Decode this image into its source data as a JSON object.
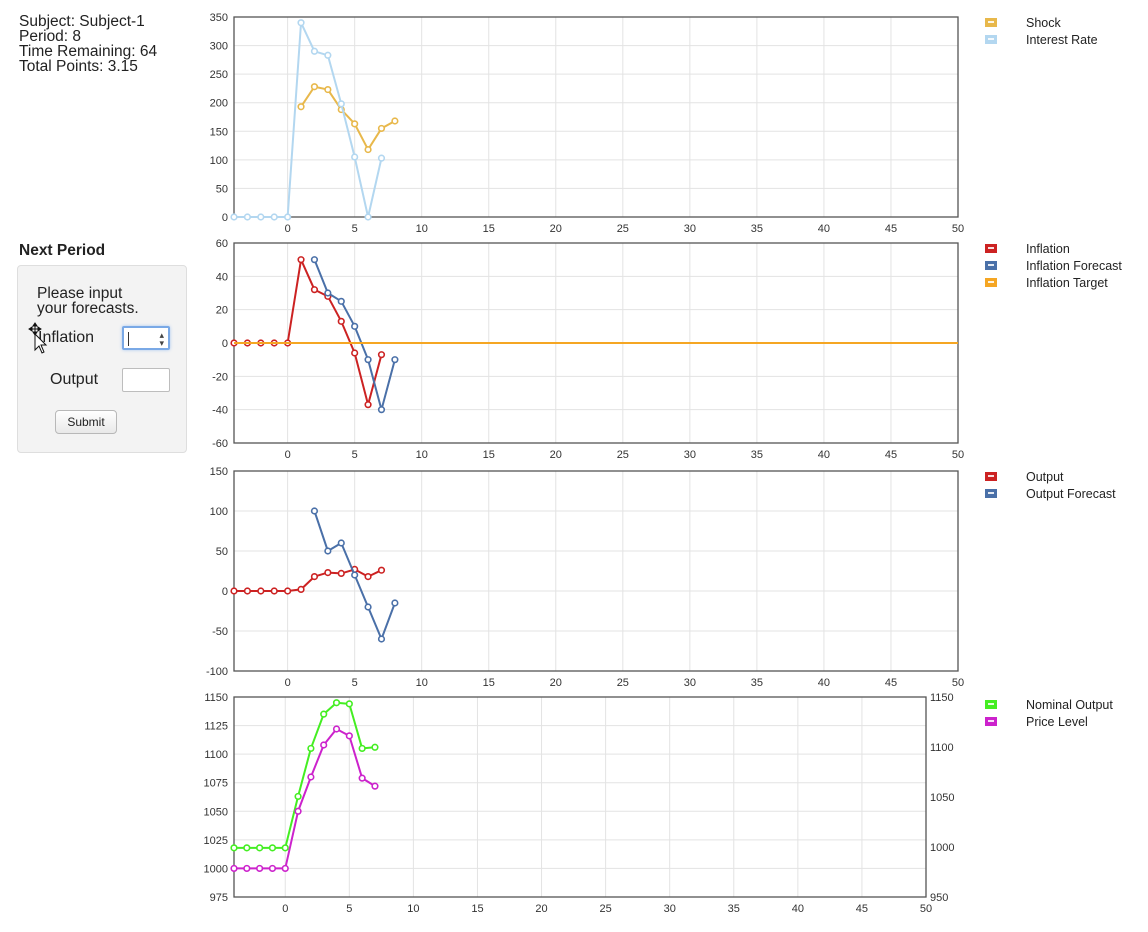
{
  "info": {
    "subject": "Subject: Subject-1",
    "period": "Period: 8",
    "time_remaining": "Time Remaining: 64",
    "total_points": "Total Points: 3.15"
  },
  "form": {
    "title": "Next Period",
    "prompt_line1": "Please input",
    "prompt_line2": "your forecasts.",
    "inflation_label": "Inflation",
    "inflation_value": "",
    "output_label": "Output",
    "output_value": "",
    "submit_label": "Submit"
  },
  "chart_data": [
    {
      "type": "line",
      "x_ticks": [
        0,
        5,
        10,
        15,
        20,
        25,
        30,
        35,
        40,
        45,
        50
      ],
      "xlim": [
        -4,
        50
      ],
      "ylim": [
        0,
        350
      ],
      "y_ticks": [
        0,
        50,
        100,
        150,
        200,
        250,
        300,
        350
      ],
      "grid": true,
      "legend_position": "right",
      "series": [
        {
          "name": "Shock",
          "color": "#e8b84b",
          "x": [
            1,
            2,
            3,
            4,
            5,
            6,
            7,
            8
          ],
          "values": [
            193,
            228,
            223,
            188,
            163,
            118,
            155,
            168
          ]
        },
        {
          "name": "Interest Rate",
          "color": "#b3d7f0",
          "x": [
            -4,
            -3,
            -2,
            -1,
            0,
            1,
            2,
            3,
            4,
            5,
            6,
            7
          ],
          "values": [
            0,
            0,
            0,
            0,
            0,
            340,
            290,
            283,
            198,
            105,
            0,
            103
          ]
        }
      ]
    },
    {
      "type": "line",
      "x_ticks": [
        0,
        5,
        10,
        15,
        20,
        25,
        30,
        35,
        40,
        45,
        50
      ],
      "xlim": [
        -4,
        50
      ],
      "ylim": [
        -60,
        60
      ],
      "y_ticks": [
        -60,
        -40,
        -20,
        0,
        20,
        40,
        60
      ],
      "grid": true,
      "legend_position": "right",
      "series": [
        {
          "name": "Inflation",
          "color": "#cc2222",
          "x": [
            -4,
            -3,
            -2,
            -1,
            0,
            1,
            2,
            3,
            4,
            5,
            6,
            7
          ],
          "values": [
            0,
            0,
            0,
            0,
            0,
            50,
            32,
            28,
            13,
            -6,
            -37,
            -7
          ]
        },
        {
          "name": "Inflation Forecast",
          "color": "#4a70a8",
          "x": [
            2,
            3,
            4,
            5,
            6,
            7,
            8
          ],
          "values": [
            50,
            30,
            25,
            10,
            -10,
            -40,
            -10
          ]
        },
        {
          "name": "Inflation Target",
          "color": "#f5a623",
          "x": [
            -4,
            50
          ],
          "values": [
            0,
            0
          ]
        }
      ]
    },
    {
      "type": "line",
      "x_ticks": [
        0,
        5,
        10,
        15,
        20,
        25,
        30,
        35,
        40,
        45,
        50
      ],
      "xlim": [
        -4,
        50
      ],
      "ylim": [
        -100,
        150
      ],
      "y_ticks": [
        -100,
        -50,
        0,
        50,
        100,
        150
      ],
      "grid": true,
      "legend_position": "right",
      "series": [
        {
          "name": "Output",
          "color": "#cc2222",
          "x": [
            -4,
            -3,
            -2,
            -1,
            0,
            1,
            2,
            3,
            4,
            5,
            6,
            7
          ],
          "values": [
            0,
            0,
            0,
            0,
            0,
            2,
            18,
            23,
            22,
            27,
            18,
            26
          ]
        },
        {
          "name": "Output Forecast",
          "color": "#4a70a8",
          "x": [
            2,
            3,
            4,
            5,
            6,
            7,
            8
          ],
          "values": [
            100,
            50,
            60,
            20,
            -20,
            -60,
            -15
          ]
        }
      ]
    },
    {
      "type": "line",
      "x_ticks": [
        0,
        5,
        10,
        15,
        20,
        25,
        30,
        35,
        40,
        45,
        50
      ],
      "xlim": [
        -4,
        50
      ],
      "ylim": [
        975,
        1150
      ],
      "y_ticks": [
        975,
        1000,
        1025,
        1050,
        1075,
        1100,
        1125,
        1150
      ],
      "y2lim": [
        950,
        1150
      ],
      "y2_ticks": [
        950,
        1000,
        1050,
        1100,
        1150
      ],
      "grid": true,
      "legend_position": "right",
      "series": [
        {
          "name": "Nominal Output",
          "color": "#44ee22",
          "x": [
            -4,
            -3,
            -2,
            -1,
            0,
            1,
            2,
            3,
            4,
            5,
            6,
            7
          ],
          "values": [
            1018,
            1018,
            1018,
            1018,
            1018,
            1063,
            1105,
            1135,
            1145,
            1144,
            1105,
            1106
          ]
        },
        {
          "name": "Price Level",
          "color": "#cc22cc",
          "x": [
            -4,
            -3,
            -2,
            -1,
            0,
            1,
            2,
            3,
            4,
            5,
            6,
            7
          ],
          "values": [
            1000,
            1000,
            1000,
            1000,
            1000,
            1050,
            1080,
            1108,
            1122,
            1116,
            1079,
            1072
          ]
        }
      ]
    }
  ]
}
